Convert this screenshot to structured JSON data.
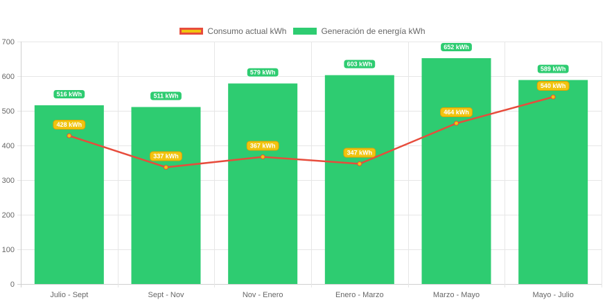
{
  "chart_data": {
    "type": "bar",
    "categories": [
      "Julio - Sept",
      "Sept - Nov",
      "Nov - Enero",
      "Enero - Marzo",
      "Marzo - Mayo",
      "Mayo - Julio"
    ],
    "series": [
      {
        "name": "Generación de energía kWh",
        "type": "bar",
        "values": [
          516,
          511,
          579,
          603,
          652,
          589
        ],
        "labels": [
          "516 kWh",
          "511 kWh",
          "579 kWh",
          "603 kWh",
          "652 kWh",
          "589 kWh"
        ],
        "color": "#2ecc71"
      },
      {
        "name": "Consumo actual kWh",
        "type": "line",
        "values": [
          428,
          337,
          367,
          347,
          464,
          540
        ],
        "labels": [
          "428 kWh",
          "337 kWh",
          "367 kWh",
          "347 kWh",
          "464 kWh",
          "540 kWh"
        ],
        "color": "#e74c3c",
        "point_color": "#f1c40f"
      }
    ],
    "legend": [
      "Consumo actual kWh",
      "Generación de energía kWh"
    ],
    "legend_position": "top",
    "ylim": [
      0,
      700
    ],
    "yticks": [
      0,
      100,
      200,
      300,
      400,
      500,
      600,
      700
    ],
    "grid": true
  },
  "colors": {
    "bar": "#2ecc71",
    "line": "#e74c3c",
    "point": "#f1c40f",
    "label_border": "#e5a000",
    "grid": "#e6e6e6"
  }
}
